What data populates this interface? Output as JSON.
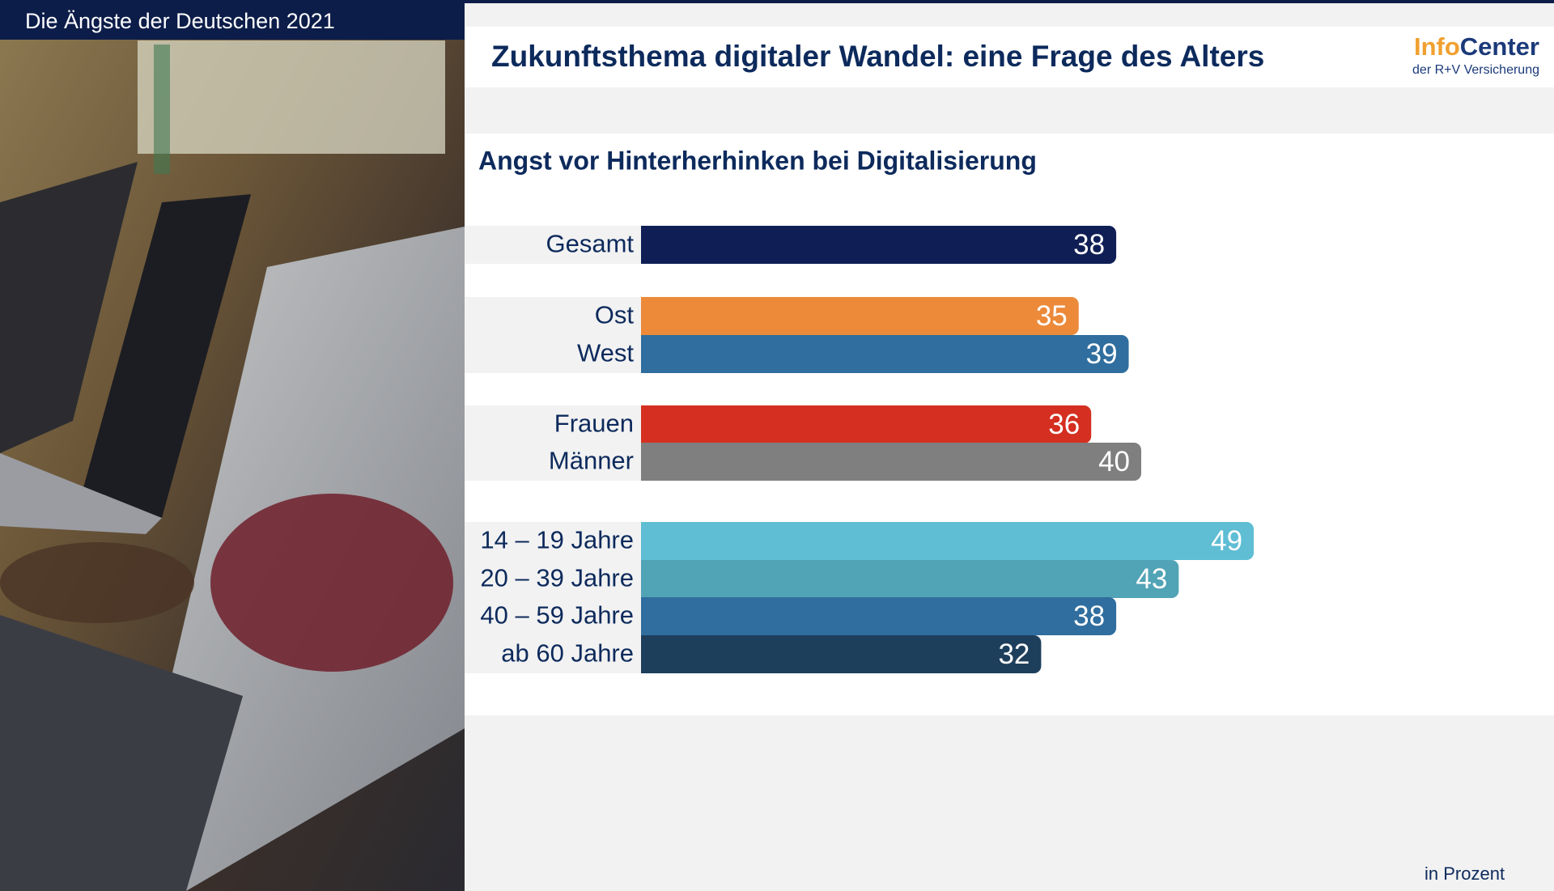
{
  "header": {
    "title": "Die Ängste der Deutschen 2021"
  },
  "slide": {
    "title": "Zukunftsthema digitaler Wandel: eine Frage des Alters"
  },
  "logo": {
    "name": [
      "Info",
      "Center"
    ],
    "subtitle": "der R+V Versicherung"
  },
  "chart_data": {
    "type": "bar",
    "orientation": "horizontal",
    "title": "Angst vor Hinterherhinken bei Digitalisierung",
    "categories": [
      "Gesamt",
      "Ost",
      "West",
      "Frauen",
      "Männer",
      "14 – 19 Jahre",
      "20 – 39 Jahre",
      "40 – 59 Jahre",
      "ab 60 Jahre"
    ],
    "values": [
      38,
      35,
      39,
      36,
      40,
      49,
      43,
      38,
      32
    ],
    "colors": [
      "#0f1f55",
      "#ec8a3a",
      "#2f6e9e",
      "#d42f20",
      "#7f7f7f",
      "#5fbdd4",
      "#51a3b6",
      "#2f6e9e",
      "#1e3f5c"
    ],
    "unit_note": "in Prozent"
  }
}
